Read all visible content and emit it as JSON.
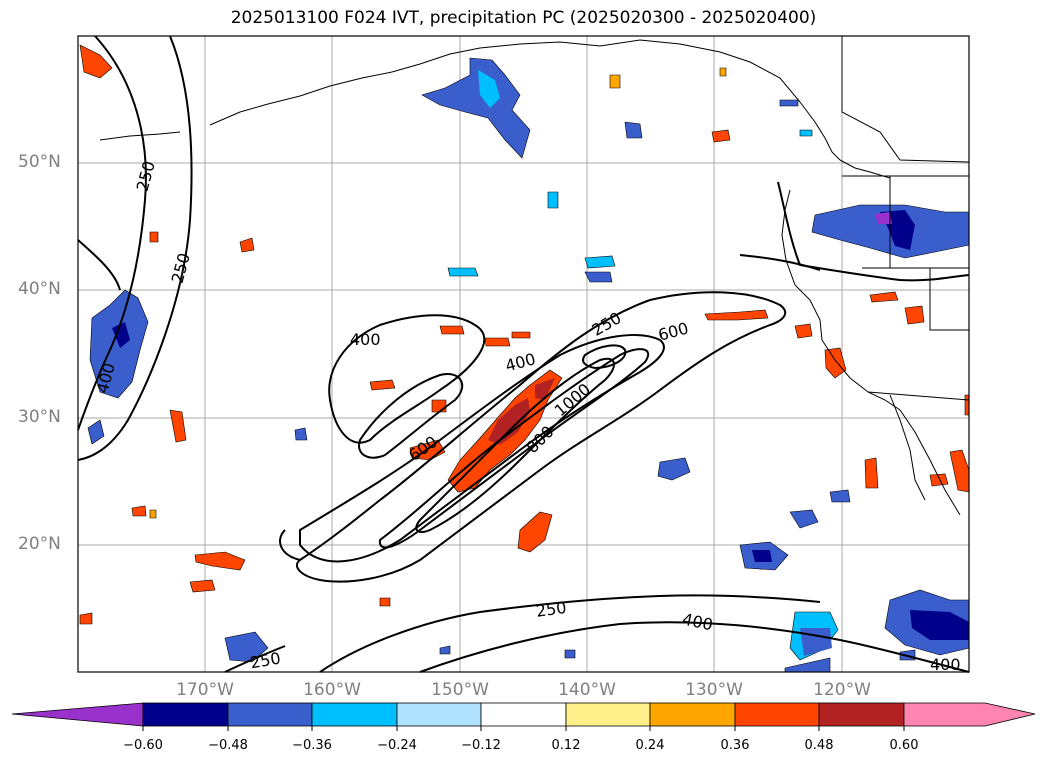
{
  "title": "2025013100 F024 IVT, precipitation PC (2025020300 - 2025020400)",
  "map": {
    "lat_labels": [
      "50°N",
      "40°N",
      "30°N",
      "20°N"
    ],
    "lon_labels": [
      "170°W",
      "160°W",
      "150°W",
      "140°W",
      "130°W",
      "120°W"
    ],
    "contour_labels": [
      "250",
      "250",
      "400",
      "400",
      "250",
      "600",
      "400",
      "600",
      "1000",
      "800",
      "250",
      "400",
      "250",
      "400"
    ]
  },
  "colorbar": {
    "ticks": [
      "−0.60",
      "−0.48",
      "−0.36",
      "−0.24",
      "−0.12",
      "0.12",
      "0.24",
      "0.36",
      "0.48",
      "0.60"
    ],
    "colors": [
      "#9932cc",
      "#00008b",
      "#3a5fcd",
      "#00bfff",
      "#b0e2ff",
      "#ffffff",
      "#fff08c",
      "#ffa500",
      "#ff4500",
      "#b22222",
      "#ff85b0",
      "#ff85b0"
    ]
  }
}
